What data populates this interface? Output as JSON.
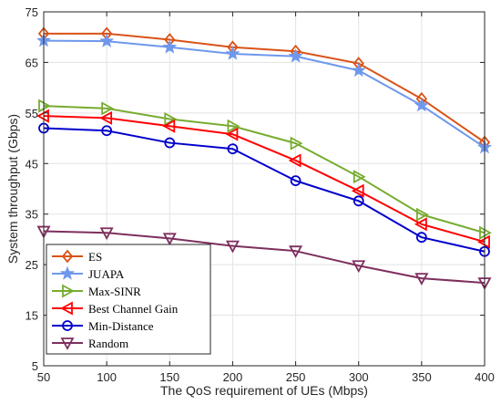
{
  "chart_data": {
    "type": "line",
    "title": "",
    "xlabel": "The QoS requirement of UEs (Mbps)",
    "ylabel": "System throughput (Gbps)",
    "x": [
      50,
      100,
      150,
      200,
      250,
      300,
      350,
      400
    ],
    "xlim": [
      50,
      400
    ],
    "ylim": [
      5,
      75
    ],
    "xticks": [
      50,
      100,
      150,
      200,
      250,
      300,
      350,
      400
    ],
    "yticks": [
      5,
      15,
      25,
      35,
      45,
      55,
      65,
      75
    ],
    "grid": true,
    "legend_position": "bottom-left",
    "series": [
      {
        "name": "ES",
        "color": "#D95319",
        "marker": "diamond",
        "values": [
          70.7,
          70.7,
          69.5,
          68.0,
          67.2,
          64.8,
          57.8,
          49.2
        ]
      },
      {
        "name": "JUAPA",
        "color": "#6F98EC",
        "marker": "star",
        "values": [
          69.3,
          69.2,
          68.0,
          66.7,
          66.2,
          63.4,
          56.5,
          48.2
        ]
      },
      {
        "name": "Max-SINR",
        "color": "#77AC30",
        "marker": "triangle-right",
        "values": [
          56.4,
          55.9,
          53.8,
          52.4,
          49.0,
          42.4,
          34.9,
          31.3
        ]
      },
      {
        "name": "Best Channel Gain",
        "color": "#FF0000",
        "marker": "triangle-left",
        "values": [
          54.4,
          54.0,
          52.4,
          50.8,
          45.6,
          39.6,
          33.0,
          29.5
        ]
      },
      {
        "name": "Min-Distance",
        "color": "#0000CC",
        "marker": "circle",
        "values": [
          52.0,
          51.5,
          49.1,
          47.9,
          41.6,
          37.6,
          30.4,
          27.6
        ]
      },
      {
        "name": "Random",
        "color": "#7E2F5E",
        "marker": "triangle-down",
        "values": [
          31.6,
          31.3,
          30.2,
          28.7,
          27.7,
          24.8,
          22.3,
          21.4
        ]
      }
    ]
  }
}
